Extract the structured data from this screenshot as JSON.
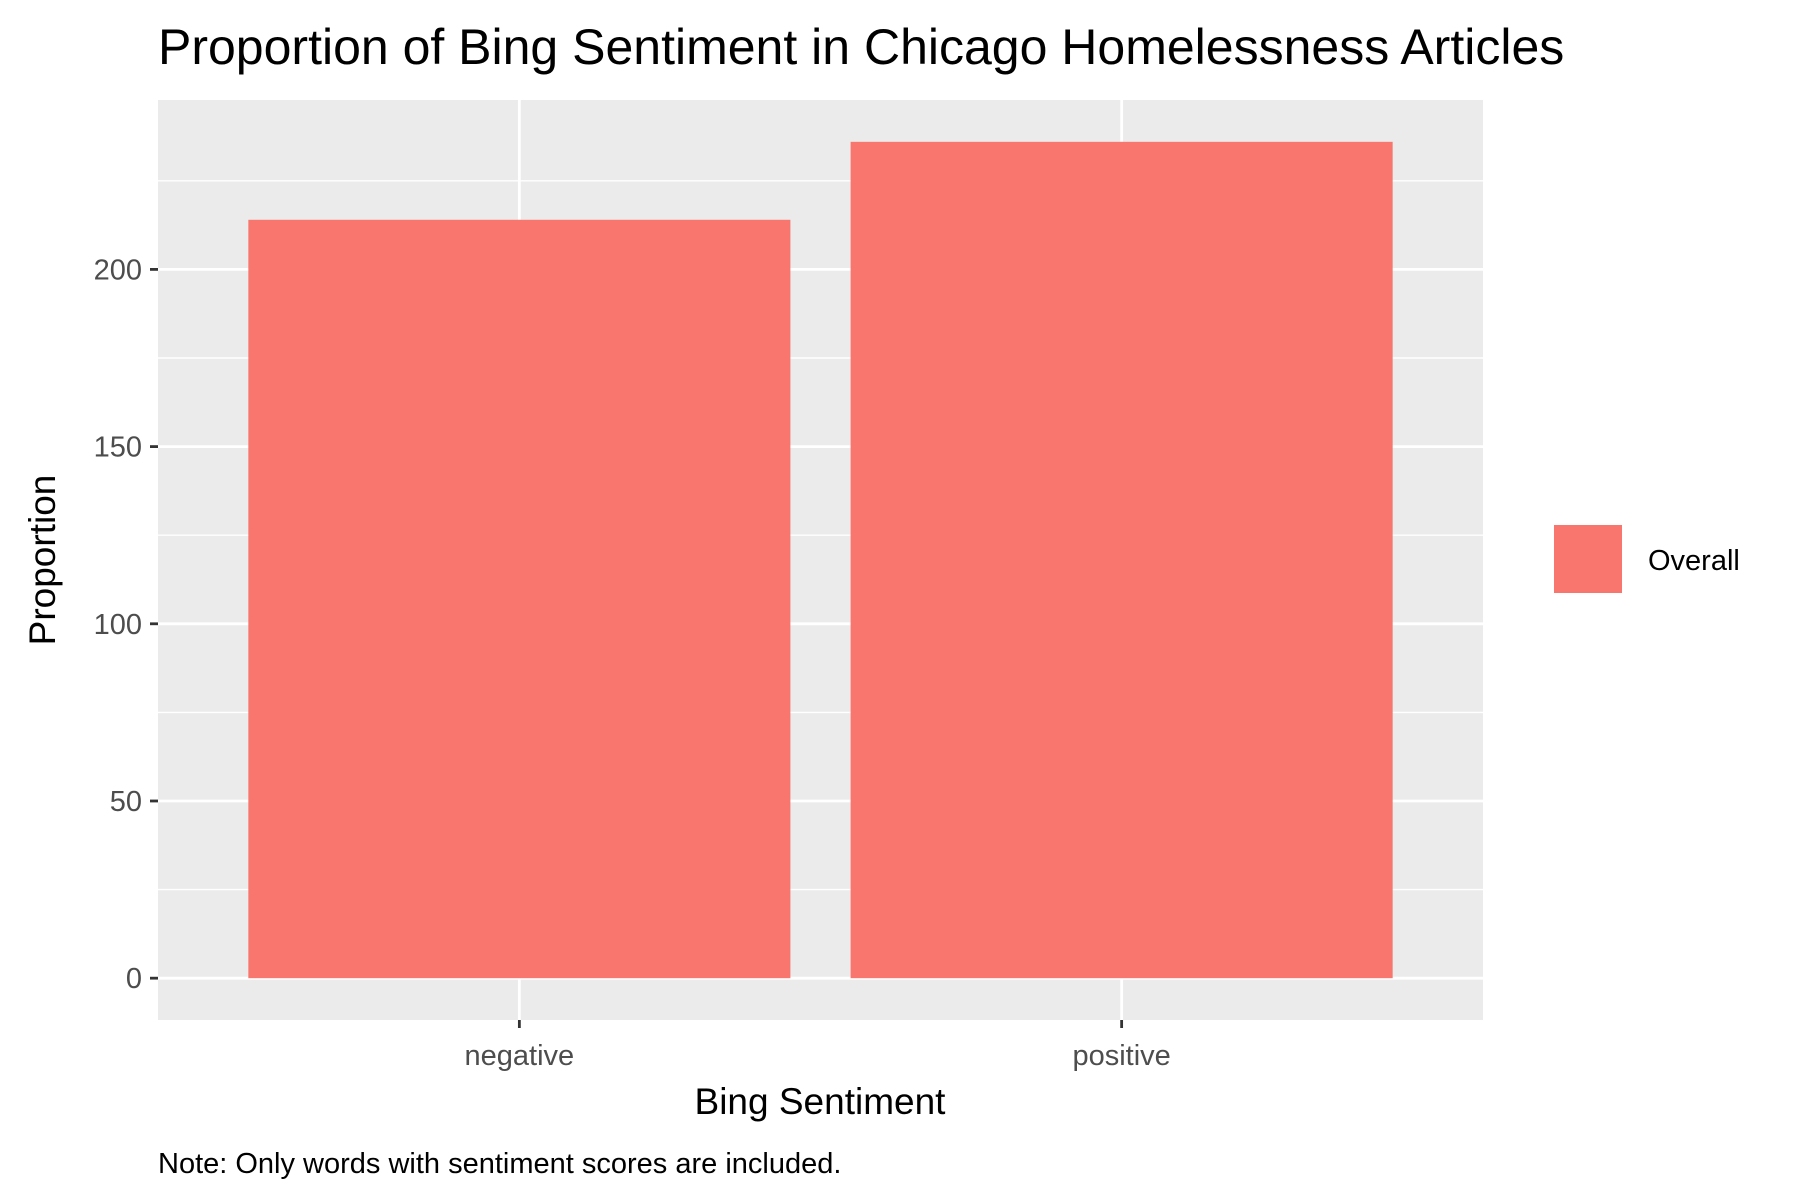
{
  "chart_data": {
    "type": "bar",
    "title": "Proportion of Bing Sentiment in Chicago Homelessness Articles",
    "xlabel": "Bing Sentiment",
    "ylabel": "Proportion",
    "caption": "Note: Only words with sentiment scores are included.",
    "categories": [
      "negative",
      "positive"
    ],
    "series": [
      {
        "name": "Overall",
        "values": [
          214,
          236
        ],
        "color": "#F8766D"
      }
    ],
    "ylim": [
      -11.8,
      247.8
    ],
    "y_ticks": [
      0,
      50,
      100,
      150,
      200
    ],
    "grid": true,
    "panel_background": "#EBEBEB",
    "grid_color": "#FFFFFF",
    "legend_position": "right"
  }
}
